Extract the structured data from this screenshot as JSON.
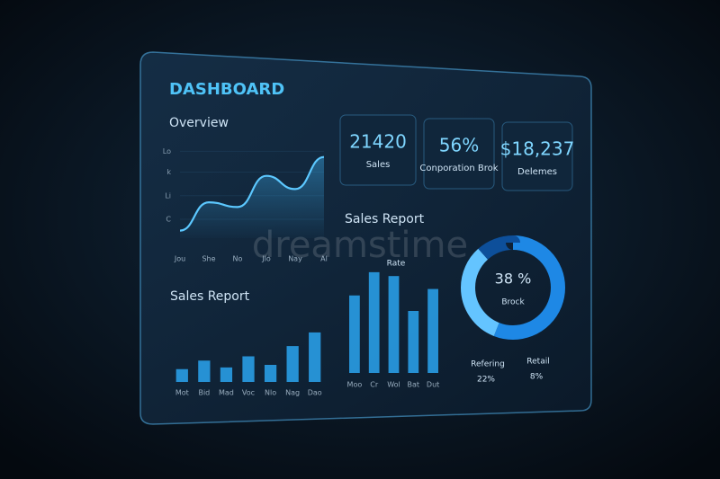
{
  "header": {
    "title": "DASHBOARD"
  },
  "watermark": "dreamstime",
  "kpis": [
    {
      "value": "21420",
      "label": "Sales"
    },
    {
      "value": "56%",
      "label": "Conporation Brok"
    },
    {
      "value": "$18,237",
      "label": "Delemes"
    }
  ],
  "chart_data": [
    {
      "type": "line",
      "title": "Overview",
      "categories": [
        "Jou",
        "She",
        "No",
        "Jlo",
        "Nay",
        "Al"
      ],
      "values": [
        8,
        38,
        33,
        66,
        52,
        86
      ],
      "color": "#5cc8ff",
      "ylim": [
        0,
        100
      ],
      "yticks": [
        {
          "value": 20,
          "label": "C"
        },
        {
          "value": 45,
          "label": "Li"
        },
        {
          "value": 70,
          "label": "k"
        },
        {
          "value": 92,
          "label": "Lo"
        }
      ]
    },
    {
      "type": "bar",
      "title": "Sales Report",
      "categories": [
        "Mot",
        "Bid",
        "Mad",
        "Voc",
        "Nlo",
        "Nag",
        "Dao"
      ],
      "values": [
        15,
        25,
        17,
        30,
        20,
        42,
        58
      ],
      "color": "#2aa4f0",
      "ylim": [
        0,
        100
      ]
    },
    {
      "type": "bar",
      "title": "Sales Report",
      "subtitle": "Rate",
      "categories": [
        "Moo",
        "Cr",
        "Wol",
        "Bat",
        "Dut"
      ],
      "values": [
        60,
        78,
        75,
        48,
        65
      ],
      "color": "#2aa4f0",
      "ylim": [
        0,
        80
      ]
    },
    {
      "type": "pie",
      "categories": [
        "Brock",
        "Refering",
        "Retail"
      ],
      "values": [
        38,
        22,
        8
      ],
      "value_labels": [
        "38 %",
        "22%",
        "8%"
      ],
      "colors": [
        "#1e88e5",
        "#64c4ff",
        "#0d4f9a"
      ]
    }
  ]
}
